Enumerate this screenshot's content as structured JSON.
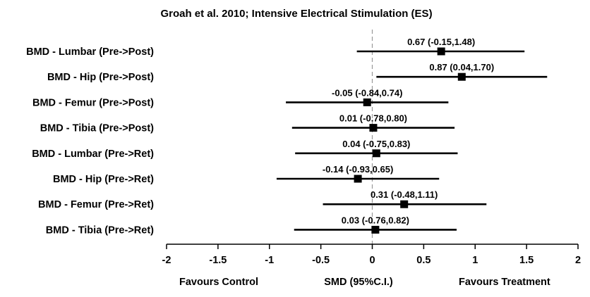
{
  "chart_data": {
    "type": "forest",
    "title": "Groah et al. 2010; Intensive Electrical Stimulation (ES)",
    "xlabel": "SMD (95%C.I.)",
    "xlim": [
      -2,
      2
    ],
    "xticks": [
      -2,
      -1.5,
      -1,
      -0.5,
      0,
      0.5,
      1,
      1.5,
      2
    ],
    "xtick_labels": [
      "-2",
      "-1.5",
      "-1",
      "-0.5",
      "0",
      "0.5",
      "1",
      "1.5",
      "2"
    ],
    "reference_line": 0,
    "footer_left": "Favours  Control",
    "footer_right": "Favours  Treatment",
    "rows": [
      {
        "label": "BMD - Lumbar (Pre->Post)",
        "smd": 0.67,
        "lower": -0.15,
        "upper": 1.48,
        "text": "0.67 (-0.15,1.48)"
      },
      {
        "label": "BMD - Hip (Pre->Post)",
        "smd": 0.87,
        "lower": 0.04,
        "upper": 1.7,
        "text": "0.87 (0.04,1.70)"
      },
      {
        "label": "BMD - Femur (Pre->Post)",
        "smd": -0.05,
        "lower": -0.84,
        "upper": 0.74,
        "text": "-0.05 (-0.84,0.74)"
      },
      {
        "label": "BMD - Tibia (Pre->Post)",
        "smd": 0.01,
        "lower": -0.78,
        "upper": 0.8,
        "text": "0.01 (-0.78,0.80)"
      },
      {
        "label": "BMD - Lumbar (Pre->Ret)",
        "smd": 0.04,
        "lower": -0.75,
        "upper": 0.83,
        "text": "0.04 (-0.75,0.83)"
      },
      {
        "label": "BMD - Hip (Pre->Ret)",
        "smd": -0.14,
        "lower": -0.93,
        "upper": 0.65,
        "text": "-0.14 (-0.93,0.65)"
      },
      {
        "label": "BMD - Femur (Pre->Ret)",
        "smd": 0.31,
        "lower": -0.48,
        "upper": 1.11,
        "text": "0.31 (-0.48,1.11)"
      },
      {
        "label": "BMD - Tibia (Pre->Ret)",
        "smd": 0.03,
        "lower": -0.76,
        "upper": 0.82,
        "text": "0.03 (-0.76,0.82)"
      }
    ]
  }
}
